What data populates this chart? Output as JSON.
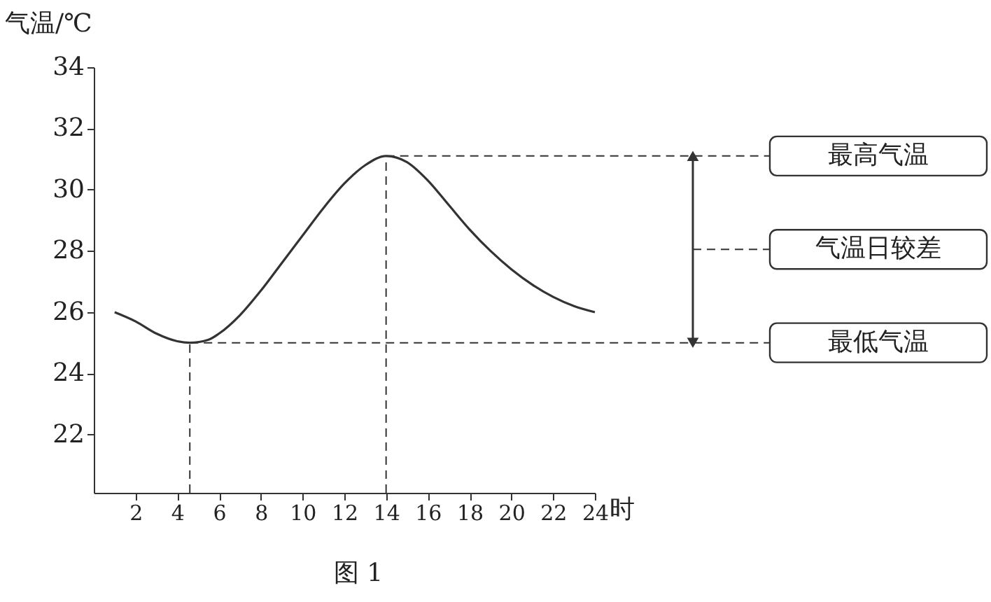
{
  "chart_data": {
    "type": "line",
    "xlabel": "时",
    "ylabel": "气温/℃",
    "x": [
      1,
      2,
      3,
      4,
      4.6,
      5.5,
      6,
      7,
      8,
      9,
      10,
      11,
      12,
      13,
      14,
      15,
      16,
      17,
      18,
      19,
      20,
      21,
      22,
      23,
      24
    ],
    "series": [
      {
        "color": "#333333",
        "values": [
          26,
          25.7,
          25.3,
          25.05,
          25,
          25.1,
          25.3,
          25.9,
          26.7,
          27.6,
          28.5,
          29.4,
          30.2,
          30.8,
          31.1,
          30.9,
          30.3,
          29.5,
          28.7,
          28,
          27.4,
          26.9,
          26.5,
          26.2,
          26.0
        ]
      }
    ],
    "xlim": [
      0,
      24
    ],
    "xticks": [
      2,
      4,
      6,
      8,
      10,
      12,
      14,
      16,
      18,
      20,
      22,
      24
    ],
    "ylim": [
      20.1,
      34
    ],
    "yticks": [
      22,
      24,
      26,
      28,
      30,
      32,
      34
    ],
    "ref_lines": [
      {
        "axis": "y",
        "value": 31.1,
        "label": "最高气温",
        "line_style": "dashed"
      },
      {
        "axis": "y",
        "value": 25,
        "label": "最低气温",
        "line_style": "dashed"
      },
      {
        "axis": "x",
        "value": 14,
        "line_style": "dashed"
      },
      {
        "axis": "x",
        "value": 4.6,
        "line_style": "dashed"
      }
    ],
    "annotations": [
      "气温日较差",
      "图 1"
    ],
    "grid": false,
    "marker": "none",
    "line_style": "solid"
  }
}
